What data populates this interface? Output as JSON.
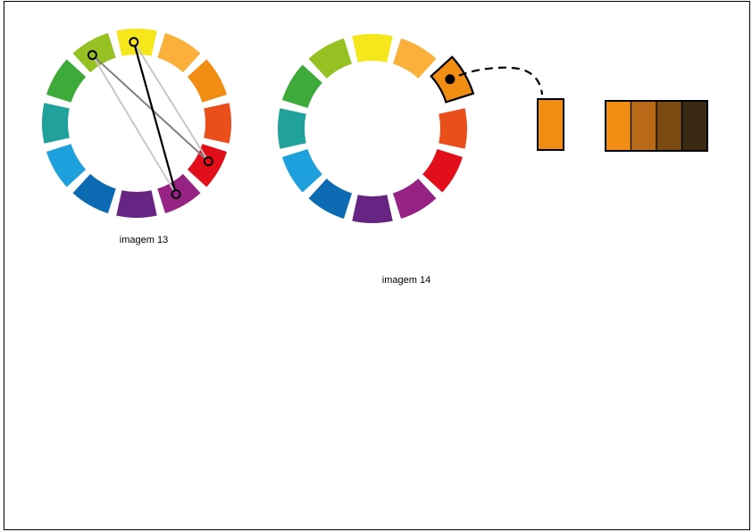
{
  "figure_13": {
    "caption": "imagem 13",
    "wheel_colors": [
      "#f6e71d",
      "#fab03b",
      "#f08d12",
      "#e94e1b",
      "#e20e1a",
      "#962383",
      "#662483",
      "#0b6ab2",
      "#1ea0dd",
      "#21a19b",
      "#3eaa3a",
      "#95c122"
    ],
    "selected_segments": [
      "#95c122",
      "#f6e71d",
      "#e20e1a",
      "#962383"
    ],
    "dark_line_color": "#000000",
    "mid_line_color": "#808080",
    "light_line_color": "#c8c8c8"
  },
  "figure_14": {
    "caption": "imagem 14",
    "wheel_colors": [
      "#f6e71d",
      "#fab03b",
      "#f08d12",
      "#e94e1b",
      "#e20e1a",
      "#962383",
      "#662483",
      "#0b6ab2",
      "#1ea0dd",
      "#21a19b",
      "#3eaa3a",
      "#95c122"
    ],
    "highlighted_segment_color": "#f08d12",
    "single_swatch_color": "#f08d12",
    "shade_strip": [
      "#f08d12",
      "#b86a18",
      "#7a4a12",
      "#3a2a14"
    ]
  }
}
